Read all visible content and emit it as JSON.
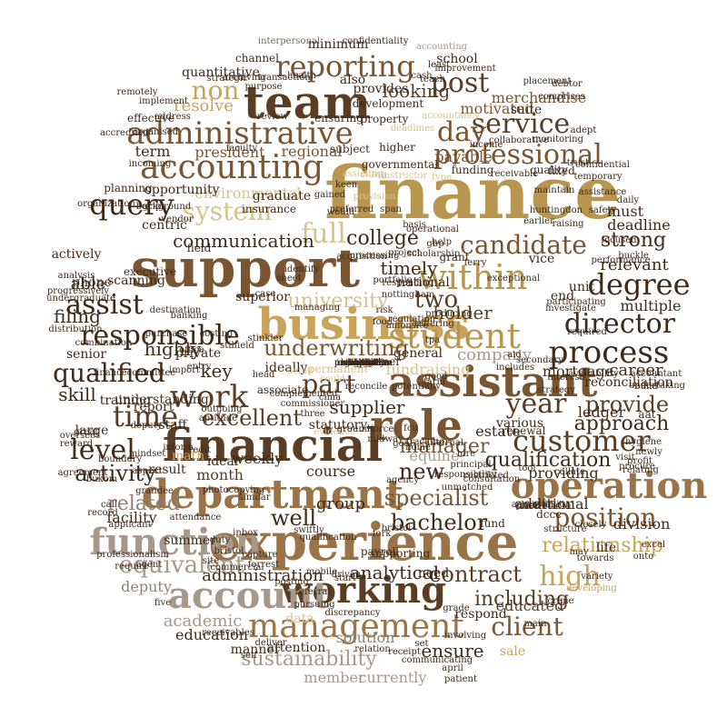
{
  "palette": [
    "#3f2a17",
    "#5a3d22",
    "#7a5532",
    "#9a7448",
    "#b8964f",
    "#c9a35a",
    "#a6998a",
    "#8c8275",
    "#d6c28c",
    "#6b5a48"
  ],
  "words": [
    {
      "t": "finance",
      "c": 4
    },
    {
      "t": "support",
      "c": 2
    },
    {
      "t": "experience",
      "c": 3
    },
    {
      "t": "financial",
      "c": 1
    },
    {
      "t": "team",
      "c": 1
    },
    {
      "t": "assistant",
      "c": 2
    },
    {
      "t": "business",
      "c": 5
    },
    {
      "t": "department",
      "c": 3
    },
    {
      "t": "role",
      "c": 2
    },
    {
      "t": "accounting",
      "c": 2
    },
    {
      "t": "administrative",
      "c": 2
    },
    {
      "t": "working",
      "c": 1
    },
    {
      "t": "reporting",
      "c": 2
    },
    {
      "t": "student",
      "c": 4
    },
    {
      "t": "process",
      "c": 0
    },
    {
      "t": "within",
      "c": 4
    },
    {
      "t": "operation",
      "c": 3
    },
    {
      "t": "function",
      "c": 6
    },
    {
      "t": "account",
      "c": 6
    },
    {
      "t": "management",
      "c": 3
    },
    {
      "t": "professional",
      "c": 2
    },
    {
      "t": "customer",
      "c": 1
    },
    {
      "t": "responsible",
      "c": 0
    },
    {
      "t": "service",
      "c": 1
    },
    {
      "t": "year",
      "c": 1
    },
    {
      "t": "director",
      "c": 0
    },
    {
      "t": "work",
      "c": 1
    },
    {
      "t": "time",
      "c": 1
    },
    {
      "t": "level",
      "c": 0
    },
    {
      "t": "assist",
      "c": 0
    },
    {
      "t": "candidate",
      "c": 2
    },
    {
      "t": "query",
      "c": 0
    },
    {
      "t": "degree",
      "c": 0
    },
    {
      "t": "day",
      "c": 2
    },
    {
      "t": "post",
      "c": 1
    },
    {
      "t": "qualified",
      "c": 0
    },
    {
      "t": "high",
      "c": 5
    },
    {
      "t": "position",
      "c": 2
    },
    {
      "t": "client",
      "c": 2
    },
    {
      "t": "specialist",
      "c": 2
    },
    {
      "t": "equivalent",
      "c": 6
    },
    {
      "t": "sustainability",
      "c": 6
    },
    {
      "t": "underwriting",
      "c": 2
    },
    {
      "t": "excellent",
      "c": 1
    },
    {
      "t": "activity",
      "c": 0
    },
    {
      "t": "contract",
      "c": 1
    },
    {
      "t": "bachelor",
      "c": 0
    },
    {
      "t": "provide",
      "c": 1
    },
    {
      "t": "system",
      "c": 8
    },
    {
      "t": "full",
      "c": 8
    },
    {
      "t": "non",
      "c": 5
    },
    {
      "t": "manager",
      "c": 2
    },
    {
      "t": "university",
      "c": 8
    },
    {
      "t": "approach",
      "c": 0
    },
    {
      "t": "qualification",
      "c": 0
    },
    {
      "t": "relationship",
      "c": 5
    },
    {
      "t": "strong",
      "c": 0
    },
    {
      "t": "communication",
      "c": 0
    },
    {
      "t": "including",
      "c": 1
    },
    {
      "t": "analytical",
      "c": 0
    },
    {
      "t": "related",
      "c": 7
    },
    {
      "t": "new",
      "c": 0
    },
    {
      "t": "college",
      "c": 0
    },
    {
      "t": "two",
      "c": 1
    },
    {
      "t": "part",
      "c": 1
    },
    {
      "t": "holder",
      "c": 1
    },
    {
      "t": "skill",
      "c": 0
    },
    {
      "t": "filing",
      "c": 0
    },
    {
      "t": "able",
      "c": 0
    },
    {
      "t": "highly",
      "c": 0
    },
    {
      "t": "key",
      "c": 0
    },
    {
      "t": "supplier",
      "c": 0
    },
    {
      "t": "ensure",
      "c": 0
    },
    {
      "t": "well",
      "c": 0
    },
    {
      "t": "group",
      "c": 0
    },
    {
      "t": "timely",
      "c": 0
    },
    {
      "t": "administration",
      "c": 0
    },
    {
      "t": "looking",
      "c": 1
    },
    {
      "t": "academic",
      "c": 6
    },
    {
      "t": "member",
      "c": 6
    },
    {
      "t": "currently",
      "c": 6
    },
    {
      "t": "deputy",
      "c": 7
    },
    {
      "t": "multiple",
      "c": 0
    },
    {
      "t": "company",
      "c": 6
    },
    {
      "t": "merchandise",
      "c": 2
    },
    {
      "t": "motivated",
      "c": 2
    },
    {
      "t": "payable",
      "c": 2
    },
    {
      "t": "president",
      "c": 2
    },
    {
      "t": "relevant",
      "c": 0
    },
    {
      "t": "environmental",
      "c": 8
    },
    {
      "t": "resolve",
      "c": 5
    },
    {
      "t": "regional",
      "c": 2
    },
    {
      "t": "term",
      "c": 0
    },
    {
      "t": "must",
      "c": 0
    },
    {
      "t": "deadline",
      "c": 0
    },
    {
      "t": "mortgage",
      "c": 0
    },
    {
      "t": "reconciliation",
      "c": 0
    },
    {
      "t": "month",
      "c": 1
    },
    {
      "t": "weekly",
      "c": 0
    },
    {
      "t": "course",
      "c": 0
    },
    {
      "t": "education",
      "c": 0
    },
    {
      "t": "solution",
      "c": 7
    },
    {
      "t": "respond",
      "c": 0
    },
    {
      "t": "educated",
      "c": 1
    },
    {
      "t": "sale",
      "c": 5
    },
    {
      "t": "data",
      "c": 8
    },
    {
      "t": "attention",
      "c": 0
    },
    {
      "t": "manner",
      "c": 0
    },
    {
      "t": "ideally",
      "c": 0
    },
    {
      "t": "permanent",
      "c": 8
    },
    {
      "t": "fundraising",
      "c": 8
    },
    {
      "t": "estate",
      "c": 0
    },
    {
      "t": "statutory",
      "c": 0
    },
    {
      "t": "equine",
      "c": 6
    },
    {
      "t": "additional",
      "c": 0
    },
    {
      "t": "providing",
      "c": 0
    },
    {
      "t": "division",
      "c": 0
    },
    {
      "t": "various",
      "c": 0
    },
    {
      "t": "ledger",
      "c": 0
    },
    {
      "t": "unit",
      "c": 0
    },
    {
      "t": "end",
      "c": 0
    },
    {
      "t": "vice",
      "c": 0
    },
    {
      "t": "national",
      "c": 0
    },
    {
      "t": "general",
      "c": 0
    },
    {
      "t": "partner",
      "c": 0
    },
    {
      "t": "career",
      "c": 0
    },
    {
      "t": "aat",
      "c": 0
    },
    {
      "t": "renewal",
      "c": 0
    },
    {
      "t": "beneficial",
      "c": 0
    },
    {
      "t": "facility",
      "c": 0
    },
    {
      "t": "summer",
      "c": 0
    },
    {
      "t": "need",
      "c": 0
    },
    {
      "t": "supporting",
      "c": 0
    },
    {
      "t": "payroll",
      "c": 0
    },
    {
      "t": "fund",
      "c": 0
    },
    {
      "t": "dccc",
      "c": 0
    },
    {
      "t": "life",
      "c": 0
    },
    {
      "t": "math",
      "c": 5
    },
    {
      "t": "result",
      "c": 0
    },
    {
      "t": "ideal",
      "c": 0
    },
    {
      "t": "understanding",
      "c": 0
    },
    {
      "t": "report",
      "c": 0
    },
    {
      "t": "training",
      "c": 0
    },
    {
      "t": "staff",
      "c": 0
    },
    {
      "t": "private",
      "c": 0
    },
    {
      "t": "large",
      "c": 0
    },
    {
      "t": "senior",
      "c": 0
    },
    {
      "t": "actively",
      "c": 0
    },
    {
      "t": "scanning",
      "c": 0
    },
    {
      "t": "phone",
      "c": 0
    },
    {
      "t": "centric",
      "c": 0
    },
    {
      "t": "field",
      "c": 0
    },
    {
      "t": "executive",
      "c": 0
    },
    {
      "t": "planning",
      "c": 0
    },
    {
      "t": "opportunity",
      "c": 0
    },
    {
      "t": "insurance",
      "c": 0
    },
    {
      "t": "graduate",
      "c": 0
    },
    {
      "t": "funding",
      "c": 0
    },
    {
      "t": "quality",
      "c": 0
    },
    {
      "t": "fixed",
      "c": 0
    },
    {
      "t": "minimum",
      "c": 0
    },
    {
      "t": "school",
      "c": 0
    },
    {
      "t": "quantitative",
      "c": 0
    },
    {
      "t": "channel",
      "c": 0
    },
    {
      "t": "also",
      "c": 0
    },
    {
      "t": "provides",
      "c": 0
    },
    {
      "t": "suite",
      "c": 0
    },
    {
      "t": "effective",
      "c": 0
    },
    {
      "t": "ensuring",
      "c": 0
    },
    {
      "t": "property",
      "c": 0
    },
    {
      "t": "development",
      "c": 0
    },
    {
      "t": "higher",
      "c": 0
    },
    {
      "t": "subject",
      "c": 0
    },
    {
      "t": "governmental",
      "c": 0
    },
    {
      "t": "faculty",
      "c": 0
    },
    {
      "t": "address",
      "c": 0
    },
    {
      "t": "review",
      "c": 0
    },
    {
      "t": "confidentiality",
      "c": 0
    },
    {
      "t": "interpersonal",
      "c": 0
    },
    {
      "t": "accounting",
      "c": 6
    },
    {
      "t": "debtor",
      "c": 0
    },
    {
      "t": "placement",
      "c": 0
    },
    {
      "t": "purpose",
      "c": 0
    },
    {
      "t": "health",
      "c": 0
    },
    {
      "t": "cash",
      "c": 0
    },
    {
      "t": "teach",
      "c": 0
    },
    {
      "t": "least",
      "c": 0
    },
    {
      "t": "strategic",
      "c": 0
    },
    {
      "t": "archiving",
      "c": 0
    },
    {
      "t": "transaction",
      "c": 0
    },
    {
      "t": "improvement",
      "c": 0
    },
    {
      "t": "monitoring",
      "c": 0
    },
    {
      "t": "collaborative",
      "c": 0
    },
    {
      "t": "income",
      "c": 0
    },
    {
      "t": "temporary",
      "c": 0
    },
    {
      "t": "assistance",
      "c": 0
    },
    {
      "t": "daily",
      "c": 0
    },
    {
      "t": "safety",
      "c": 0
    },
    {
      "t": "huntingdon",
      "c": 0
    },
    {
      "t": "raising",
      "c": 0
    },
    {
      "t": "focused",
      "c": 0
    },
    {
      "t": "performance",
      "c": 0
    },
    {
      "t": "buckle",
      "c": 0
    },
    {
      "t": "participating",
      "c": 0
    },
    {
      "t": "investigate",
      "c": 0
    },
    {
      "t": "required",
      "c": 0
    },
    {
      "t": "includes",
      "c": 0
    },
    {
      "t": "secondary",
      "c": 0
    },
    {
      "t": "availability",
      "c": 0
    },
    {
      "t": "accountant",
      "c": 0
    },
    {
      "t": "undertaking",
      "c": 0
    },
    {
      "t": "hygiene",
      "c": 0
    },
    {
      "t": "newly",
      "c": 0
    },
    {
      "t": "profit",
      "c": 0
    },
    {
      "t": "relating",
      "c": 0
    },
    {
      "t": "collate",
      "c": 0
    },
    {
      "t": "tool",
      "c": 0
    },
    {
      "t": "responsibility",
      "c": 0
    },
    {
      "t": "restricted",
      "c": 0
    },
    {
      "t": "agency",
      "c": 0
    },
    {
      "t": "aid",
      "c": 0
    },
    {
      "t": "excel",
      "c": 0
    },
    {
      "t": "onto",
      "c": 0
    },
    {
      "t": "may",
      "c": 0
    },
    {
      "t": "towards",
      "c": 0
    },
    {
      "t": "variety",
      "c": 0
    },
    {
      "t": "developing",
      "c": 5
    },
    {
      "t": "crime",
      "c": 0
    },
    {
      "t": "main",
      "c": 0
    },
    {
      "t": "involving",
      "c": 0
    },
    {
      "t": "communicating",
      "c": 0
    },
    {
      "t": "april",
      "c": 0
    },
    {
      "t": "patient",
      "c": 0
    },
    {
      "t": "grade",
      "c": 0
    },
    {
      "t": "set",
      "c": 0
    },
    {
      "t": "receipt",
      "c": 0
    },
    {
      "t": "relation",
      "c": 0
    },
    {
      "t": "referral",
      "c": 0
    },
    {
      "t": "start",
      "c": 0
    },
    {
      "t": "pursuing",
      "c": 0
    },
    {
      "t": "discrepancy",
      "c": 0
    },
    {
      "t": "self",
      "c": 0
    },
    {
      "t": "receivables",
      "c": 0
    },
    {
      "t": "deliver",
      "c": 0
    },
    {
      "t": "commercial",
      "c": 0
    },
    {
      "t": "site",
      "c": 0
    },
    {
      "t": "five",
      "c": 0
    },
    {
      "t": "agent",
      "c": 0
    },
    {
      "t": "require",
      "c": 0
    },
    {
      "t": "professionalism",
      "c": 0
    },
    {
      "t": "applicant",
      "c": 0
    },
    {
      "t": "call",
      "c": 0
    },
    {
      "t": "aspect",
      "c": 0
    },
    {
      "t": "record",
      "c": 0
    },
    {
      "t": "agreement",
      "c": 0
    },
    {
      "t": "great",
      "c": 0
    },
    {
      "t": "undergraduate",
      "c": 0
    },
    {
      "t": "progressively",
      "c": 0
    },
    {
      "t": "distribution",
      "c": 0
    },
    {
      "t": "analysis",
      "c": 0
    },
    {
      "t": "reward",
      "c": 0
    },
    {
      "t": "oversees",
      "c": 0
    },
    {
      "t": "combination",
      "c": 0
    },
    {
      "t": "office",
      "c": 0
    },
    {
      "t": "entry",
      "c": 0
    },
    {
      "t": "banking",
      "c": 0
    },
    {
      "t": "vendor",
      "c": 0
    },
    {
      "t": "background",
      "c": 0
    },
    {
      "t": "grip",
      "c": 0
    },
    {
      "t": "implement",
      "c": 0
    },
    {
      "t": "organization",
      "c": 0
    },
    {
      "t": "organised",
      "c": 0
    },
    {
      "t": "accredited",
      "c": 0
    },
    {
      "t": "remotely",
      "c": 0
    },
    {
      "t": "incoming",
      "c": 0
    },
    {
      "t": "processing",
      "c": 0
    },
    {
      "t": "project",
      "c": 0
    },
    {
      "t": "help",
      "c": 0
    },
    {
      "t": "exceptional",
      "c": 0
    },
    {
      "t": "operational",
      "c": 0
    },
    {
      "t": "span",
      "c": 0
    },
    {
      "t": "would",
      "c": 0
    },
    {
      "t": "gained",
      "c": 0
    },
    {
      "t": "preferred",
      "c": 0
    },
    {
      "t": "associate",
      "c": 0
    },
    {
      "t": "superior",
      "c": 0
    },
    {
      "t": "case",
      "c": 0
    },
    {
      "t": "managing",
      "c": 0
    },
    {
      "t": "risk",
      "c": 0
    },
    {
      "t": "grant",
      "c": 0
    },
    {
      "t": "head",
      "c": 0
    },
    {
      "t": "detail",
      "c": 8
    },
    {
      "t": "could",
      "c": 8
    },
    {
      "t": "evidence",
      "c": 8
    },
    {
      "t": "provision",
      "c": 8
    },
    {
      "t": "instructor",
      "c": 8
    },
    {
      "t": "type",
      "c": 8
    },
    {
      "t": "assisting",
      "c": 8
    },
    {
      "t": "citing",
      "c": 8
    },
    {
      "t": "deadlines",
      "c": 8
    },
    {
      "t": "accountancy",
      "c": 8
    },
    {
      "t": "keen",
      "c": 0
    },
    {
      "t": "basis",
      "c": 0
    },
    {
      "t": "potentially",
      "c": 0
    },
    {
      "t": "farm",
      "c": 0
    },
    {
      "t": "good",
      "c": 0
    },
    {
      "t": "differing",
      "c": 0
    },
    {
      "t": "producing",
      "c": 0
    },
    {
      "t": "fcu",
      "c": 0
    },
    {
      "t": "unmatched",
      "c": 0
    },
    {
      "t": "tracking",
      "c": 0
    },
    {
      "t": "aptitude",
      "c": 0
    },
    {
      "t": "outgoing",
      "c": 0
    },
    {
      "t": "import",
      "c": 0
    },
    {
      "t": "credit",
      "c": 0
    },
    {
      "t": "inform",
      "c": 0
    },
    {
      "t": "mindset",
      "c": 0
    },
    {
      "t": "financecommittee",
      "c": 0
    },
    {
      "t": "destination",
      "c": 0
    },
    {
      "t": "costing",
      "c": 0
    },
    {
      "t": "purchase",
      "c": 0
    },
    {
      "t": "deputy",
      "c": 0
    },
    {
      "t": "boundary",
      "c": 0
    },
    {
      "t": "bukom",
      "c": 0
    },
    {
      "t": "grandee",
      "c": 0
    },
    {
      "t": "photocopying",
      "c": 0
    },
    {
      "t": "similar",
      "c": 0
    },
    {
      "t": "swiftly",
      "c": 0
    },
    {
      "t": "qualification",
      "c": 0
    },
    {
      "t": "inbox",
      "c": 0
    },
    {
      "t": "attendance",
      "c": 0
    },
    {
      "t": "duty",
      "c": 0
    },
    {
      "t": "bristol",
      "c": 0
    },
    {
      "t": "capture",
      "c": 0
    },
    {
      "t": "forrest",
      "c": 0
    },
    {
      "t": "posting",
      "c": 0
    },
    {
      "t": "mobile",
      "c": 0
    },
    {
      "t": "driven",
      "c": 0
    },
    {
      "t": "fork",
      "c": 0
    },
    {
      "t": "bristol",
      "c": 0
    },
    {
      "t": "pride",
      "c": 0
    },
    {
      "t": "accessibility",
      "c": 0
    },
    {
      "t": "structure",
      "c": 0
    },
    {
      "t": "closely",
      "c": 0
    },
    {
      "t": "visit",
      "c": 0
    },
    {
      "t": "procure",
      "c": 0
    },
    {
      "t": "build",
      "c": 0
    },
    {
      "t": "interest",
      "c": 0
    },
    {
      "t": "strategy",
      "c": 0
    },
    {
      "t": "consultation",
      "c": 0
    },
    {
      "t": "principal",
      "c": 0
    },
    {
      "t": "hire",
      "c": 0
    },
    {
      "t": "internal",
      "c": 0
    },
    {
      "t": "home",
      "c": 0
    },
    {
      "t": "goal",
      "c": 0
    },
    {
      "t": "midway",
      "c": 0
    },
    {
      "t": "groundforce",
      "c": 0
    },
    {
      "t": "maintain",
      "c": 0
    },
    {
      "t": "receivable",
      "c": 0
    },
    {
      "t": "earlier",
      "c": 0
    },
    {
      "t": "adept",
      "c": 0
    },
    {
      "t": "confidential",
      "c": 0
    },
    {
      "t": "trust",
      "c": 0
    },
    {
      "t": "comprises",
      "c": 0
    },
    {
      "t": "stinkler",
      "c": 0
    },
    {
      "t": "stilfield",
      "c": 0
    },
    {
      "t": "identify",
      "c": 0
    },
    {
      "t": "sheet",
      "c": 0
    },
    {
      "t": "three",
      "c": 0
    },
    {
      "t": "cima",
      "c": 0
    },
    {
      "t": "acquisition",
      "c": 0
    },
    {
      "t": "portfolio",
      "c": 0
    },
    {
      "t": "tpa",
      "c": 0
    },
    {
      "t": "ferry",
      "c": 0
    },
    {
      "t": "scholarship",
      "c": 0
    },
    {
      "t": "gbp",
      "c": 0
    },
    {
      "t": "food",
      "c": 0
    },
    {
      "t": "amonsite",
      "c": 0
    },
    {
      "t": "nottingham",
      "c": 0
    },
    {
      "t": "responding",
      "c": 0
    },
    {
      "t": "regulation",
      "c": 0
    },
    {
      "t": "complemented",
      "c": 0
    },
    {
      "t": "commissioner",
      "c": 0
    },
    {
      "t": "reconcile",
      "c": 0
    },
    {
      "t": "presentation",
      "c": 0
    },
    {
      "t": "eligibility",
      "c": 0
    },
    {
      "t": "organisation",
      "c": 0
    },
    {
      "t": "chase",
      "c": 0
    },
    {
      "t": "deliverable",
      "c": 0
    },
    {
      "t": "information",
      "c": 0
    },
    {
      "t": "enable",
      "c": 0
    },
    {
      "t": "tender",
      "c": 0
    },
    {
      "t": "regular",
      "c": 0
    },
    {
      "t": "long",
      "c": 0
    },
    {
      "t": "acorn",
      "c": 0
    },
    {
      "t": "asap",
      "c": 0
    },
    {
      "t": "uk",
      "c": 0
    },
    {
      "t": "sage",
      "c": 0
    },
    {
      "t": "attitude",
      "c": 0
    }
  ]
}
